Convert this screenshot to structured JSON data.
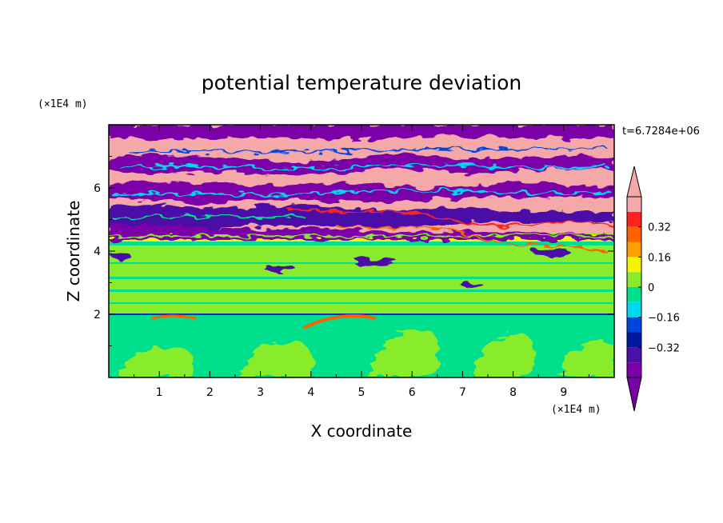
{
  "chart_data": {
    "type": "heatmap",
    "title": "potential temperature deviation",
    "xlabel": "X coordinate",
    "ylabel": "Z coordinate",
    "x_unit": "(×1E4 m)",
    "y_unit": "(×1E4 m)",
    "time_label": "t=6.7284e+06",
    "xlim": [
      0,
      10
    ],
    "ylim": [
      0,
      8
    ],
    "x_ticks": [
      "1",
      "2",
      "3",
      "4",
      "5",
      "6",
      "7",
      "8",
      "9"
    ],
    "y_ticks": [
      "2",
      "4",
      "6"
    ],
    "colorbar": {
      "levels": [
        -0.48,
        -0.4,
        -0.32,
        -0.24,
        -0.16,
        -0.08,
        0,
        0.08,
        0.16,
        0.24,
        0.32,
        0.4,
        0.48
      ],
      "tick_labels": [
        "0.32",
        "0.16",
        "0",
        "−0.16",
        "−0.32"
      ],
      "tick_values": [
        0.32,
        0.16,
        0,
        -0.16,
        -0.32
      ],
      "colors": [
        "#7b00a8",
        "#4b10a8",
        "#0018a0",
        "#0044e0",
        "#00d8f0",
        "#00e08c",
        "#88ec2c",
        "#f4f400",
        "#ffa000",
        "#ff6000",
        "#ff2020",
        "#f4a8a8"
      ],
      "extend": "both"
    }
  }
}
